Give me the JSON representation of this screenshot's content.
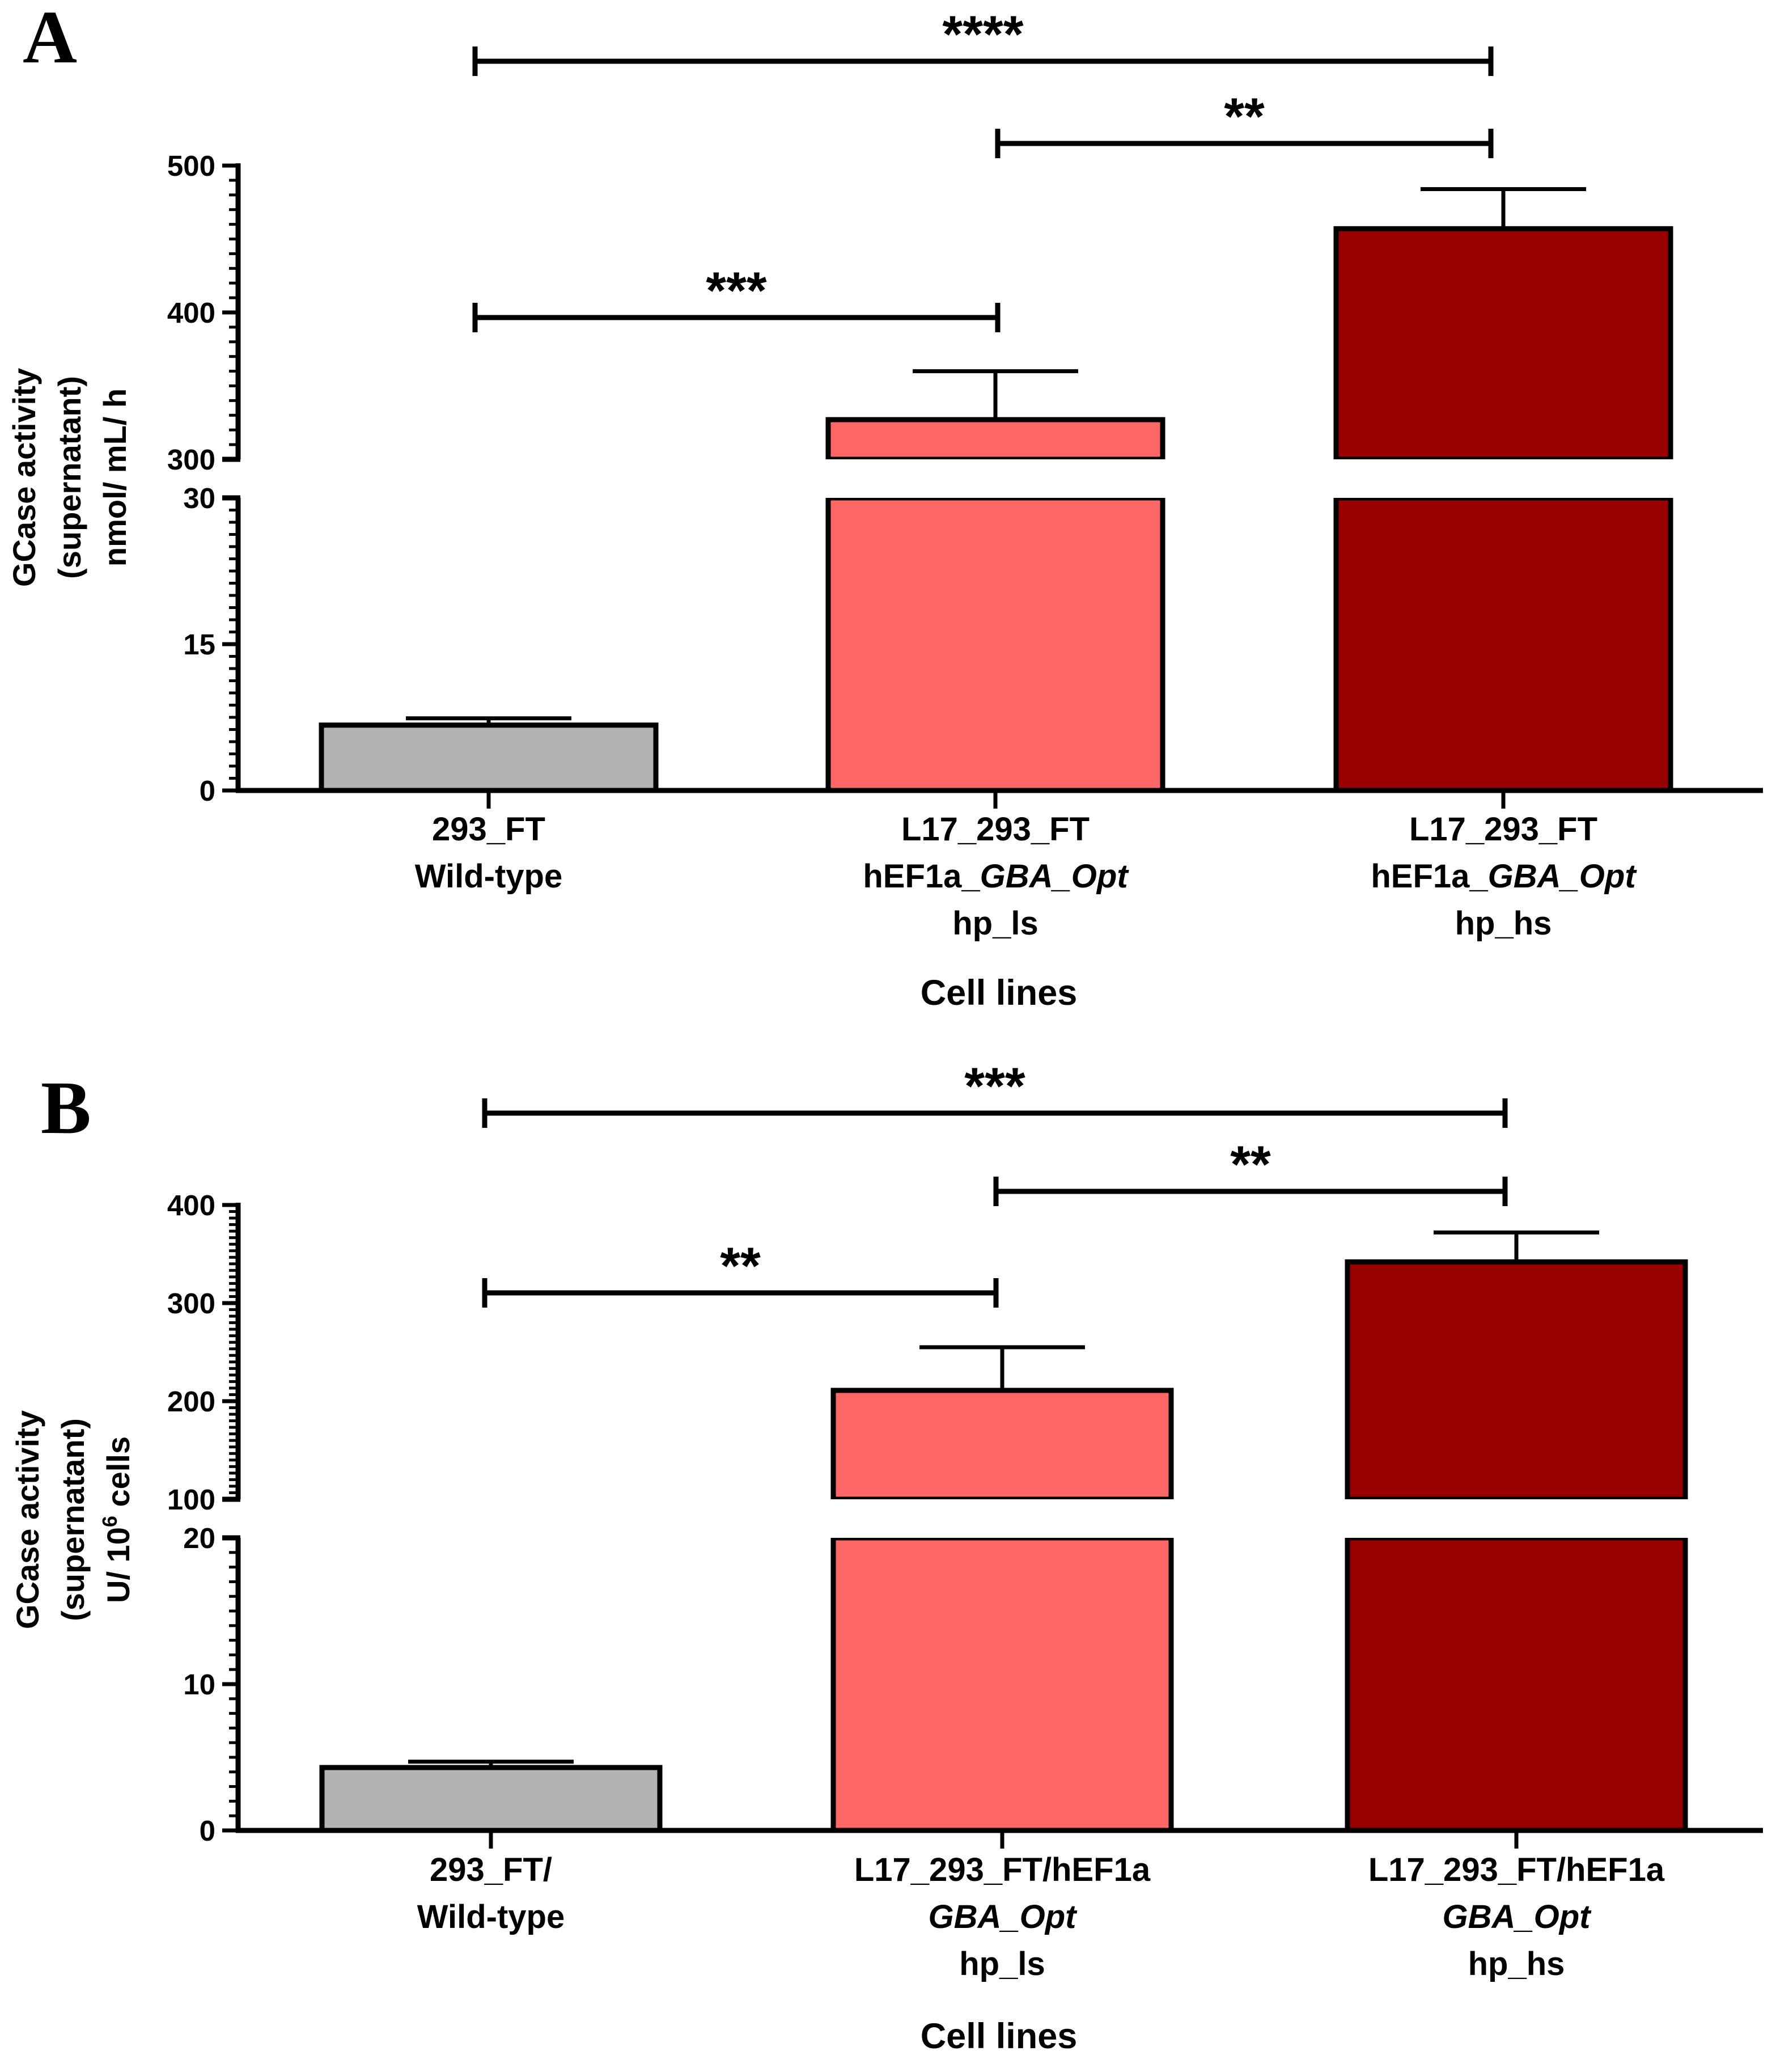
{
  "chart_data": [
    {
      "type": "bar",
      "panel": "A",
      "title": "",
      "xlabel": "Cell lines",
      "ylabel_lines": [
        "GCase activity",
        "(supernatant)",
        "nmol/ mL/ h"
      ],
      "axis_break": {
        "lower": [
          0,
          30
        ],
        "upper": [
          300,
          500
        ]
      },
      "yticks_lower": [
        "0",
        "15",
        "30"
      ],
      "yticks_upper": [
        "300",
        "400",
        "500"
      ],
      "categories": [
        {
          "lines": [
            [
              {
                "t": "293_FT"
              }
            ],
            [
              {
                "t": "Wild-type"
              }
            ]
          ]
        },
        {
          "lines": [
            [
              {
                "t": "L17_293_FT"
              }
            ],
            [
              {
                "t": "hEF1a_"
              },
              {
                "t": "GBA_Opt",
                "i": true
              }
            ],
            [
              {
                "t": "hp_ls"
              }
            ]
          ]
        },
        {
          "lines": [
            [
              {
                "t": "L17_293_FT"
              }
            ],
            [
              {
                "t": "hEF1a_"
              },
              {
                "t": "GBA_Opt",
                "i": true
              }
            ],
            [
              {
                "t": "hp_hs"
              }
            ]
          ]
        }
      ],
      "values": [
        6.7,
        327,
        457
      ],
      "errors": [
        0.7,
        33,
        27
      ],
      "colors": [
        "#b3b3b3",
        "#ff6666",
        "#990000"
      ],
      "significance": [
        {
          "from": 0,
          "to": 2,
          "label": "****"
        },
        {
          "from": 1,
          "to": 2,
          "label": "**"
        },
        {
          "from": 0,
          "to": 1,
          "label": "***"
        }
      ]
    },
    {
      "type": "bar",
      "panel": "B",
      "title": "",
      "xlabel": "Cell lines",
      "ylabel_lines": [
        "GCase activity",
        "(supernatant)",
        "U/ 10^6 cells"
      ],
      "axis_break": {
        "lower": [
          0,
          20
        ],
        "upper": [
          100,
          400
        ]
      },
      "yticks_lower": [
        "0",
        "10",
        "20"
      ],
      "yticks_upper": [
        "100",
        "200",
        "300",
        "400"
      ],
      "categories": [
        {
          "lines": [
            [
              {
                "t": "293_FT/"
              }
            ],
            [
              {
                "t": "Wild-type"
              }
            ]
          ]
        },
        {
          "lines": [
            [
              {
                "t": "L17_293_FT/hEF1a"
              }
            ],
            [
              {
                "t": "GBA_Opt",
                "i": true
              }
            ],
            [
              {
                "t": "hp_ls"
              }
            ]
          ]
        },
        {
          "lines": [
            [
              {
                "t": "L17_293_FT/hEF1a"
              }
            ],
            [
              {
                "t": "GBA_Opt",
                "i": true
              }
            ],
            [
              {
                "t": "hp_hs"
              }
            ]
          ]
        }
      ],
      "values": [
        4.3,
        211,
        342
      ],
      "errors": [
        0.4,
        44,
        30
      ],
      "colors": [
        "#b3b3b3",
        "#ff6666",
        "#990000"
      ],
      "significance": [
        {
          "from": 0,
          "to": 2,
          "label": "***"
        },
        {
          "from": 1,
          "to": 2,
          "label": "**"
        },
        {
          "from": 0,
          "to": 1,
          "label": "**"
        }
      ]
    }
  ]
}
